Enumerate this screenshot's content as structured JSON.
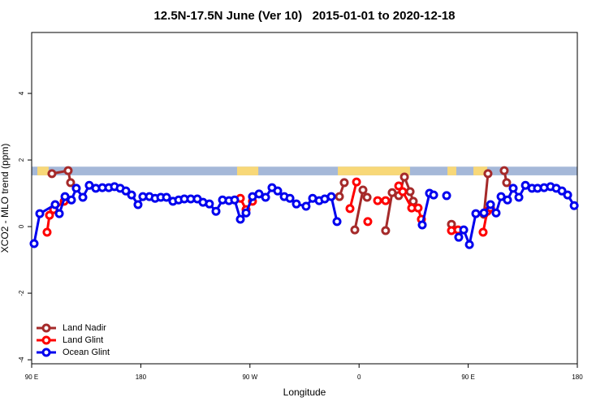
{
  "chart_data": {
    "type": "line",
    "title": "12.5N-17.5N June (Ver 10)   2015-01-01 to 2020-12-18",
    "x_label": "Longitude",
    "y_label": "XCO2 - MLO trend (ppm)",
    "xlim": [
      90,
      540
    ],
    "ylim": [
      -4.12,
      5.83
    ],
    "xticks": [
      {
        "value": 90,
        "label": "90 E"
      },
      180,
      {
        "value": 270,
        "label": "90 W"
      },
      {
        "value": 360,
        "label": "0"
      },
      {
        "value": 450,
        "label": "90 E"
      },
      {
        "value": 540,
        "label": "180"
      }
    ],
    "yticks": [
      -4,
      -2,
      0,
      2,
      4
    ],
    "legend": "bottom-left",
    "band": {
      "ylim": [
        1.54,
        1.8
      ],
      "color": "#a5b8d8",
      "land_color": "#f8d878",
      "land": [
        [
          94.7,
          104
        ],
        [
          259.4,
          276.9
        ],
        [
          342.5,
          402
        ],
        [
          432.9,
          440.2
        ],
        [
          454.3,
          465.7
        ]
      ]
    },
    "series": [
      {
        "name": "Land Nadir",
        "color": "#a52a2a",
        "x": [
          106.7,
          120.1,
          122.1,
          null,
          343.8,
          347.8,
          null,
          356.5,
          363.2,
          366.6,
          null,
          381.9,
          387.3,
          392.7,
          397.4,
          402.1,
          404.7,
          null,
          436.2,
          null,
          463.0,
          466.3,
          null,
          479.7,
          481.7
        ],
        "values": [
          1.59,
          1.68,
          1.32,
          null,
          0.9,
          1.32,
          null,
          -0.1,
          1.1,
          0.88,
          null,
          -0.12,
          1.02,
          0.93,
          1.49,
          1.05,
          0.76,
          null,
          0.07,
          null,
          0.37,
          1.59,
          null,
          1.68,
          1.32
        ]
      },
      {
        "name": "Land Glint",
        "color": "#ff0000",
        "x": [
          102.7,
          104.7,
          108.1,
          116.8,
          null,
          262.1,
          266.8,
          272.1,
          null,
          352.5,
          357.9,
          null,
          367.2,
          null,
          375.3,
          381.9,
          null,
          392.7,
          396.0,
          403.4,
          408.7,
          411.4,
          null,
          436.2,
          441.6,
          null,
          462.3,
          465.7,
          468.4
        ],
        "values": [
          -0.17,
          0.34,
          0.51,
          0.76,
          null,
          0.85,
          0.51,
          0.76,
          null,
          0.54,
          1.34,
          null,
          0.15,
          null,
          0.78,
          0.78,
          null,
          1.22,
          1.05,
          0.56,
          0.56,
          0.22,
          null,
          -0.12,
          -0.1,
          null,
          -0.17,
          0.46,
          0.56
        ]
      },
      {
        "name": "Ocean Glint",
        "color": "#0000ee",
        "x": [
          92.0,
          96.7,
          109.4,
          112.8,
          117.5,
          122.8,
          126.8,
          132.2,
          137.5,
          142.9,
          148.3,
          153.6,
          158.3,
          163.0,
          167.7,
          172.4,
          177.7,
          181.7,
          187.1,
          191.8,
          196.5,
          201.2,
          206.5,
          211.2,
          215.9,
          221.2,
          226.6,
          231.3,
          236.6,
          242.0,
          247.4,
          252.7,
          257.4,
          262.1,
          266.8,
          272.1,
          277.5,
          282.9,
          288.2,
          292.9,
          298.3,
          303.0,
          308.3,
          316.3,
          321.7,
          327.1,
          331.7,
          337.1,
          341.8,
          null,
          412.1,
          418.1,
          421.5,
          null,
          432.2,
          null,
          442.2,
          446.3,
          451.0,
          456.3,
          463.0,
          468.4,
          473.0,
          477.1,
          482.4,
          487.1,
          491.8,
          497.2,
          502.6,
          507.2,
          512.6,
          517.9,
          522.6,
          527.3,
          532.0,
          537.4
        ],
        "values": [
          -0.51,
          0.39,
          0.66,
          0.39,
          0.9,
          0.8,
          1.15,
          0.88,
          1.24,
          1.15,
          1.17,
          1.17,
          1.2,
          1.15,
          1.07,
          0.95,
          0.66,
          0.9,
          0.9,
          0.85,
          0.88,
          0.88,
          0.76,
          0.8,
          0.83,
          0.83,
          0.83,
          0.73,
          0.68,
          0.46,
          0.8,
          0.78,
          0.8,
          0.22,
          0.41,
          0.9,
          0.98,
          0.88,
          1.17,
          1.07,
          0.9,
          0.85,
          0.68,
          0.61,
          0.85,
          0.78,
          0.83,
          0.9,
          0.15,
          null,
          0.05,
          1.0,
          0.95,
          null,
          0.93,
          null,
          -0.32,
          -0.1,
          -0.54,
          0.39,
          0.41,
          0.66,
          0.41,
          0.9,
          0.8,
          1.15,
          0.88,
          1.24,
          1.15,
          1.15,
          1.17,
          1.2,
          1.15,
          1.07,
          0.95,
          0.63
        ]
      }
    ]
  }
}
